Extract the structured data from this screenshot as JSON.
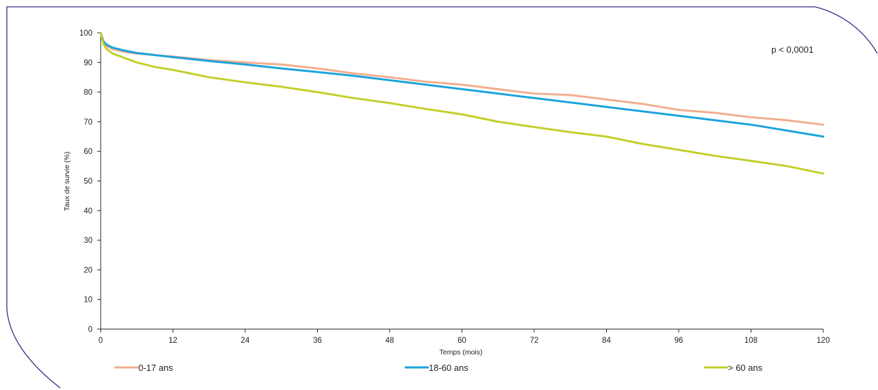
{
  "chart_data": {
    "type": "line",
    "xlabel": "Temps (mois)",
    "ylabel": "Taux de survie (%)",
    "xlim": [
      0,
      120
    ],
    "ylim": [
      0,
      100
    ],
    "xticks": [
      0,
      12,
      24,
      36,
      48,
      60,
      72,
      84,
      96,
      108,
      120
    ],
    "yticks": [
      0,
      10,
      20,
      30,
      40,
      50,
      60,
      70,
      80,
      90,
      100
    ],
    "annotation": "p < 0,0001",
    "grid": false,
    "legend_position": "bottom",
    "series": [
      {
        "name": "0-17 ans",
        "color": "#f2ae8f",
        "x": [
          0,
          0.5,
          1,
          2,
          4,
          6,
          9,
          12,
          18,
          24,
          30,
          36,
          42,
          48,
          54,
          60,
          66,
          72,
          78,
          84,
          90,
          96,
          102,
          108,
          114,
          120
        ],
        "y": [
          100,
          96.5,
          95.5,
          94.5,
          93.5,
          93,
          92.5,
          92,
          90.8,
          90,
          89.3,
          88,
          86.3,
          85,
          83.5,
          82.5,
          81,
          79.5,
          79,
          77.5,
          76,
          74,
          73,
          71.5,
          70.5,
          69
        ]
      },
      {
        "name": "18-60 ans",
        "color": "#1aa3dc",
        "x": [
          0,
          0.5,
          1,
          2,
          4,
          6,
          9,
          12,
          18,
          24,
          30,
          36,
          42,
          48,
          54,
          60,
          66,
          72,
          78,
          84,
          90,
          96,
          102,
          108,
          114,
          120
        ],
        "y": [
          100,
          97,
          96,
          95,
          94,
          93.2,
          92.5,
          91.8,
          90.5,
          89.3,
          88,
          86.8,
          85.5,
          84,
          82.5,
          81,
          79.5,
          78,
          76.5,
          75,
          73.5,
          72,
          70.5,
          69,
          67,
          65
        ]
      },
      {
        "name": "> 60 ans",
        "color": "#c3cf2a",
        "x": [
          0,
          0.5,
          1,
          2,
          4,
          6,
          9,
          12,
          18,
          24,
          30,
          36,
          42,
          48,
          54,
          60,
          66,
          72,
          78,
          84,
          90,
          96,
          102,
          108,
          114,
          120
        ],
        "y": [
          100,
          96,
          94.5,
          93,
          91.5,
          90,
          88.5,
          87.5,
          85,
          83.3,
          81.8,
          80,
          78,
          76.3,
          74.3,
          72.5,
          70,
          68.2,
          66.5,
          65,
          62.5,
          60.5,
          58.5,
          56.8,
          55,
          52.5
        ]
      }
    ]
  }
}
